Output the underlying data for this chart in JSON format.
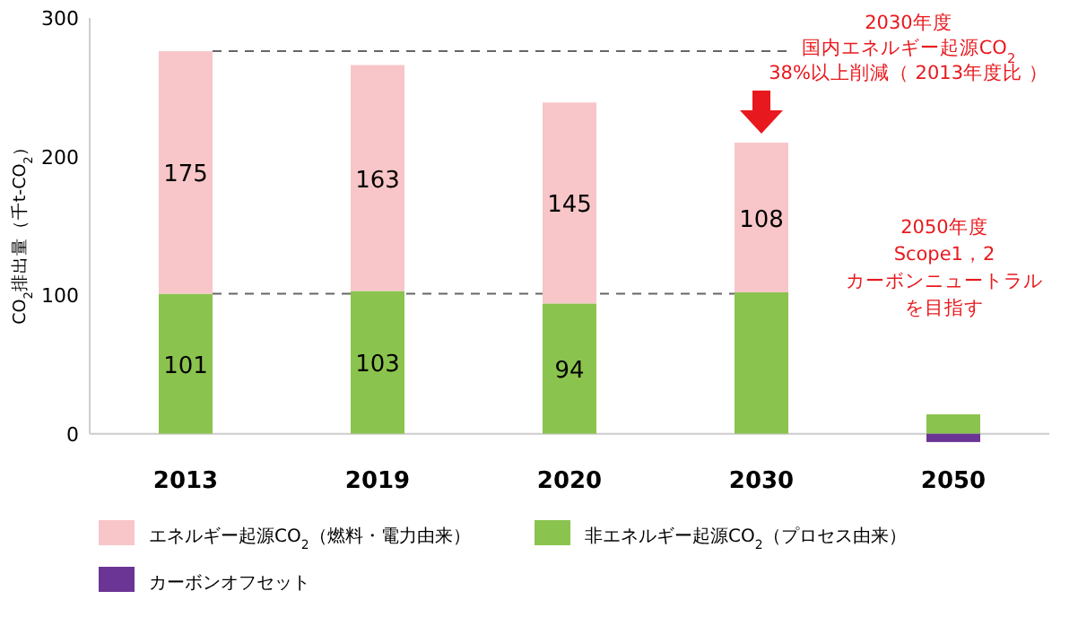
{
  "chart_data": {
    "type": "bar",
    "stacked": true,
    "ylabel": "CO$_{2}$排出量（千t-CO$_{2}$）",
    "categories": [
      "2013",
      "2019",
      "2020",
      "2030",
      "2050"
    ],
    "series": [
      {
        "name": "非エネルギー起源CO$_{2}$（プロセス由来）",
        "color": "#8bc34f",
        "values": [
          101,
          103,
          94,
          102,
          14
        ],
        "value_labels": [
          "101",
          "103",
          "94",
          null,
          null
        ]
      },
      {
        "name": "エネルギー起源CO$_{2}$（燃料・電力由来）",
        "color": "#f8c6c8",
        "values": [
          175,
          163,
          145,
          108,
          null
        ],
        "value_labels": [
          "175",
          "163",
          "145",
          "108",
          null
        ]
      },
      {
        "name": "カーボンオフセット",
        "color": "#6a3594",
        "values": [
          null,
          null,
          null,
          null,
          -6
        ]
      }
    ],
    "ylim": [
      -8,
      300
    ],
    "yticks": [
      0,
      100,
      200,
      300
    ],
    "grid": false,
    "legend": "bottom",
    "ref_lines": [
      {
        "axis": "y",
        "value": 276,
        "line_style": "dashed",
        "color": "#666666"
      },
      {
        "axis": "y",
        "value": 101,
        "line_style": "dashed",
        "color": "#666666"
      }
    ],
    "annotations": [
      "2030年度",
      "国内エネルギー起源CO$_{2}$",
      "38%以上削減（ 2013年度比 ）",
      "2050年度",
      "Scope1，2",
      "カーボンニュートラル",
      "を目指す"
    ]
  }
}
